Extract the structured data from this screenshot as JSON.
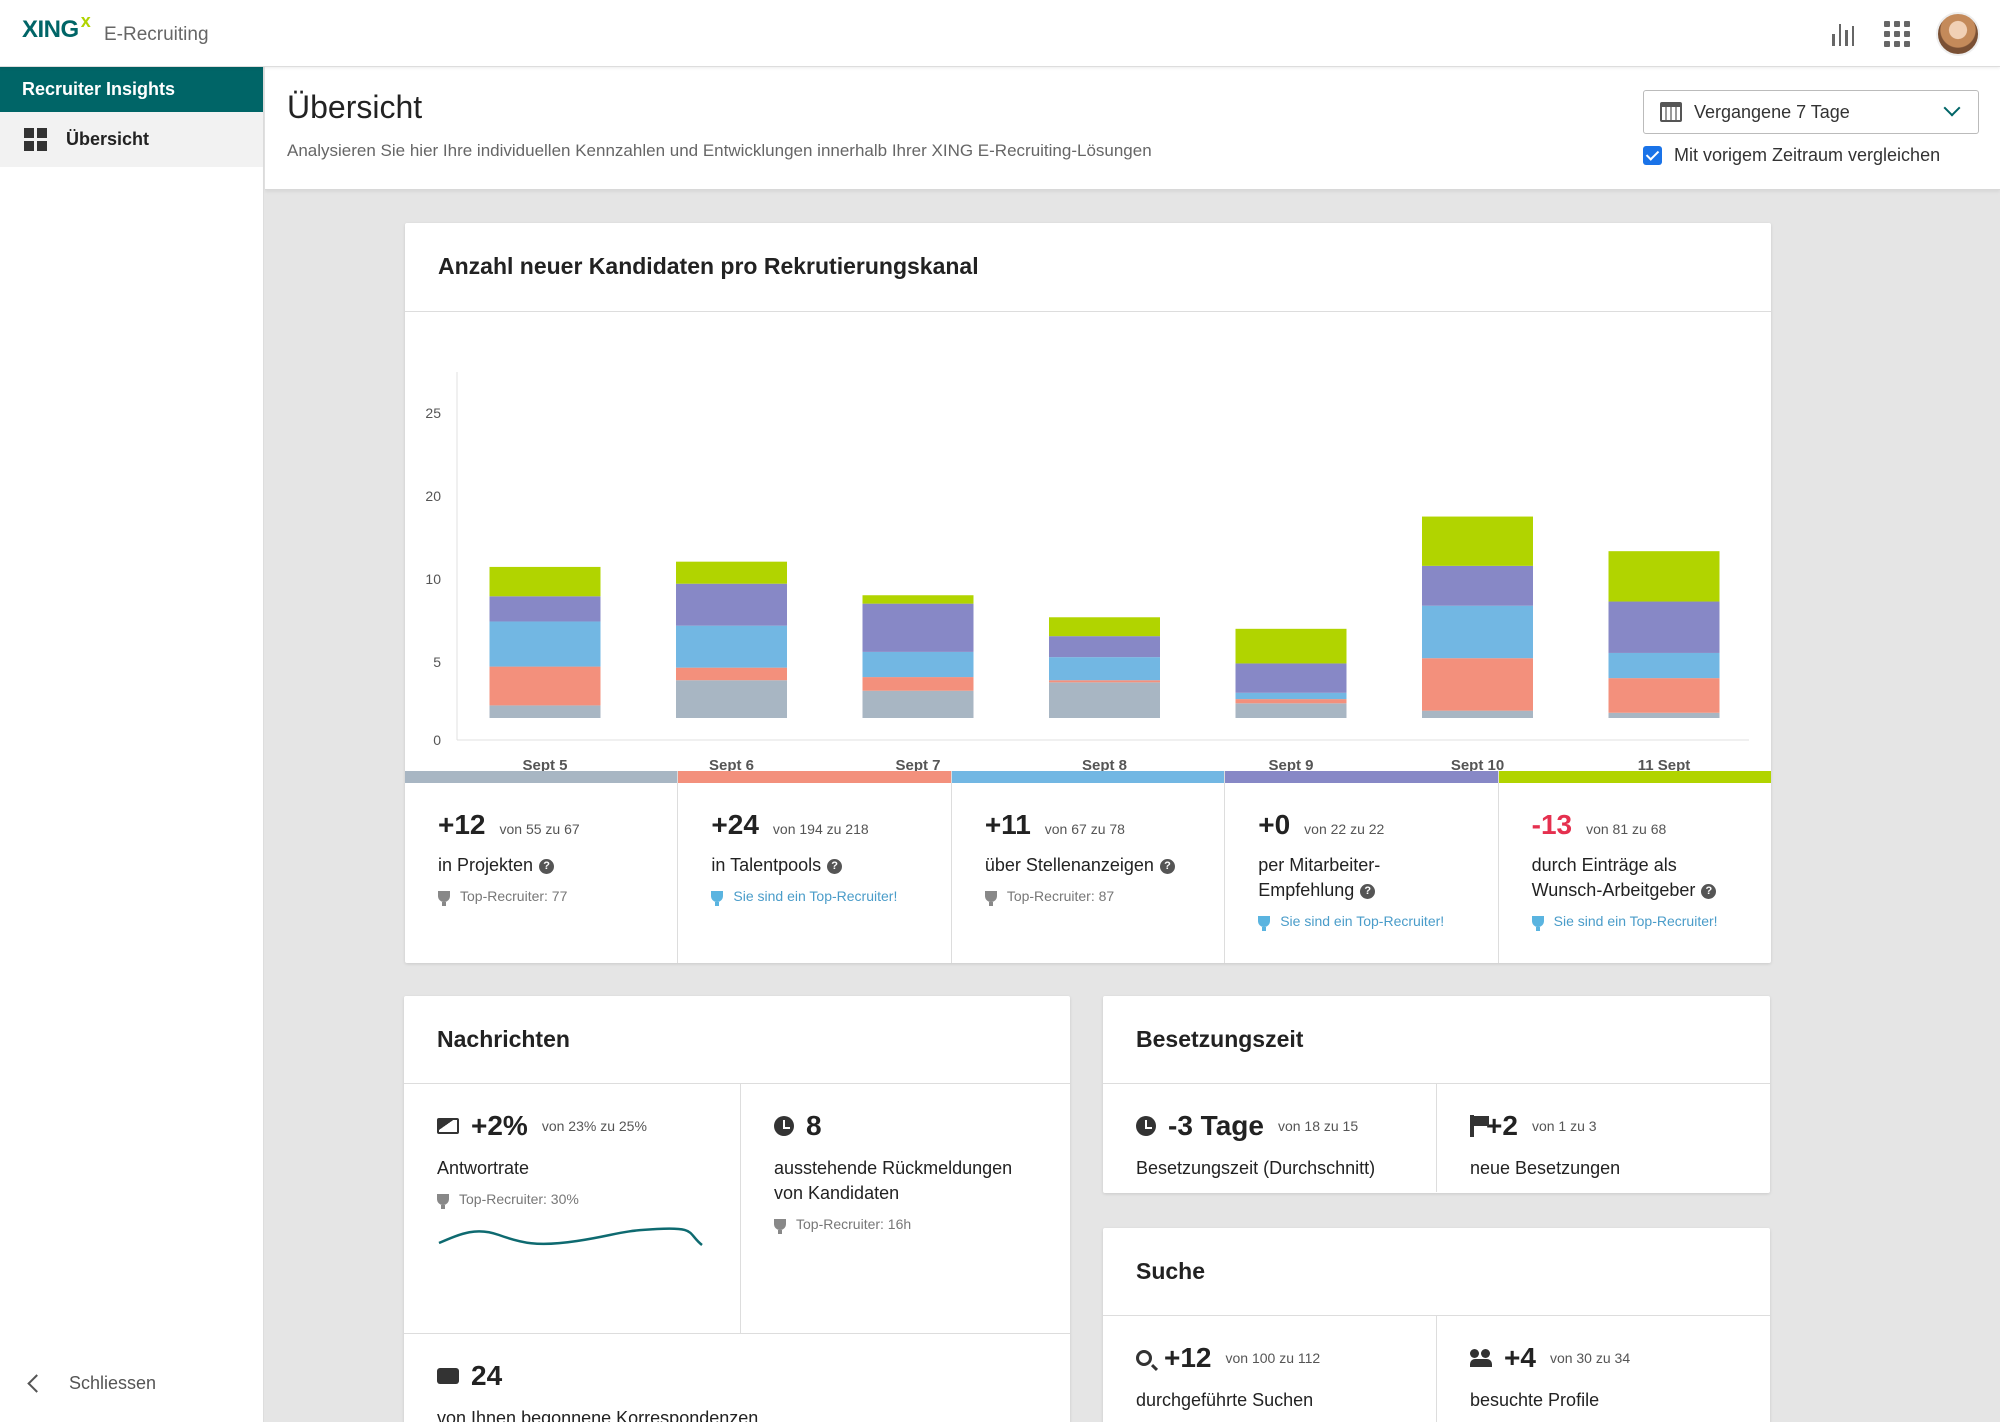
{
  "app": {
    "brand": "XING",
    "brand_mark": "x",
    "product": "E-Recruiting"
  },
  "topbar_icons": [
    "bar-chart-icon",
    "apps-grid-icon",
    "user-avatar"
  ],
  "sidebar": {
    "heading": "Recruiter Insights",
    "items": [
      {
        "label": "Übersicht",
        "icon": "dashboard-icon",
        "active": true
      }
    ],
    "close_label": "Schliessen"
  },
  "page": {
    "title": "Übersicht",
    "subtitle": "Analysieren Sie hier Ihre individuellen Kennzahlen und Entwicklungen innerhalb Ihrer XING E-Recruiting-Lösungen",
    "range_select": "Vergangene 7 Tage",
    "compare_label": "Mit vorigem Zeitraum vergleichen",
    "compare_checked": true
  },
  "colors": {
    "brand": "#006567",
    "projekte": "#a8b6c3",
    "talentpools": "#f3907c",
    "stellenanzeigen": "#72b7e3",
    "mitarbeiter": "#8788c6",
    "arbeitgeber": "#b1d400",
    "negative": "#e5304f"
  },
  "chart": {
    "title": "Anzahl neuer Kandidaten pro Rekrutierungskanal"
  },
  "chart_data": {
    "type": "bar",
    "stacked": true,
    "categories": [
      "Sept 5",
      "Sept 6",
      "Sept 7",
      "Sept 8",
      "Sept 9",
      "Sept 10",
      "11 Sept"
    ],
    "y_ticks": [
      "0",
      "5",
      "10",
      "20",
      "25"
    ],
    "series": [
      {
        "color": "#a8b6c3",
        "values": [
          1.2,
          3.6,
          2.6,
          3.4,
          1.4,
          0.7,
          0.5
        ]
      },
      {
        "color": "#f3907c",
        "values": [
          3.7,
          1.2,
          1.3,
          0.2,
          0.4,
          5.0,
          3.3
        ]
      },
      {
        "color": "#72b7e3",
        "values": [
          4.3,
          4.0,
          2.4,
          2.2,
          0.6,
          5.0,
          2.4
        ]
      },
      {
        "color": "#8788c6",
        "values": [
          2.4,
          4.0,
          4.6,
          2.0,
          2.8,
          3.8,
          4.9
        ]
      },
      {
        "color": "#b1d400",
        "values": [
          2.8,
          2.1,
          0.8,
          1.8,
          3.3,
          4.7,
          4.8
        ]
      }
    ],
    "grid": false
  },
  "stats": [
    {
      "delta": "+12",
      "from": "von 55 zu 67",
      "label": "in Projekten",
      "note": "Top-Recruiter: 77",
      "top": false,
      "negative": false,
      "color": "#a8b6c3"
    },
    {
      "delta": "+24",
      "from": "von 194 zu 218",
      "label": "in Talentpools",
      "note": "Sie sind ein Top-Recruiter!",
      "top": true,
      "negative": false,
      "color": "#f3907c"
    },
    {
      "delta": "+11",
      "from": "von 67 zu 78",
      "label": "über Stellenanzeigen",
      "note": "Top-Recruiter: 87",
      "top": false,
      "negative": false,
      "color": "#72b7e3"
    },
    {
      "delta": "+0",
      "from": "von 22 zu 22",
      "label": "per Mitarbeiter-Empfehlung",
      "note": "Sie sind ein Top-Recruiter!",
      "top": true,
      "negative": false,
      "color": "#8788c6"
    },
    {
      "delta": "-13",
      "from": "von 81 zu 68",
      "label": "durch Einträge als Wunsch-Arbeitgeber",
      "note": "Sie sind ein Top-Recruiter!",
      "top": true,
      "negative": true,
      "color": "#b1d400"
    }
  ],
  "nachrichten": {
    "title": "Nachrichten",
    "antwortrate": {
      "value": "+2%",
      "from": "von 23% zu 25%",
      "label": "Antwortrate",
      "note": "Top-Recruiter: 30%"
    },
    "rueckmeldungen": {
      "value": "8",
      "label": "ausstehende Rückmeldungen von Kandidaten",
      "note": "Top-Recruiter: 16h"
    },
    "korrespondenzen": {
      "value": "24",
      "label": "von Ihnen begonnene Korrespondenzen"
    }
  },
  "besetzungszeit": {
    "title": "Besetzungszeit",
    "dauer": {
      "value": "-3 Tage",
      "from": "von 18 zu 15",
      "label": "Besetzungszeit (Durchschnitt)"
    },
    "besetzungen": {
      "value": "+2",
      "from": "von 1 zu 3",
      "label": "neue Besetzungen"
    }
  },
  "suche": {
    "title": "Suche",
    "suchen": {
      "value": "+12",
      "from": "von 100 zu 112",
      "label": "durchgeführte Suchen"
    },
    "profile": {
      "value": "+4",
      "from": "von 30 zu 34",
      "label": "besuchte Profile"
    }
  }
}
